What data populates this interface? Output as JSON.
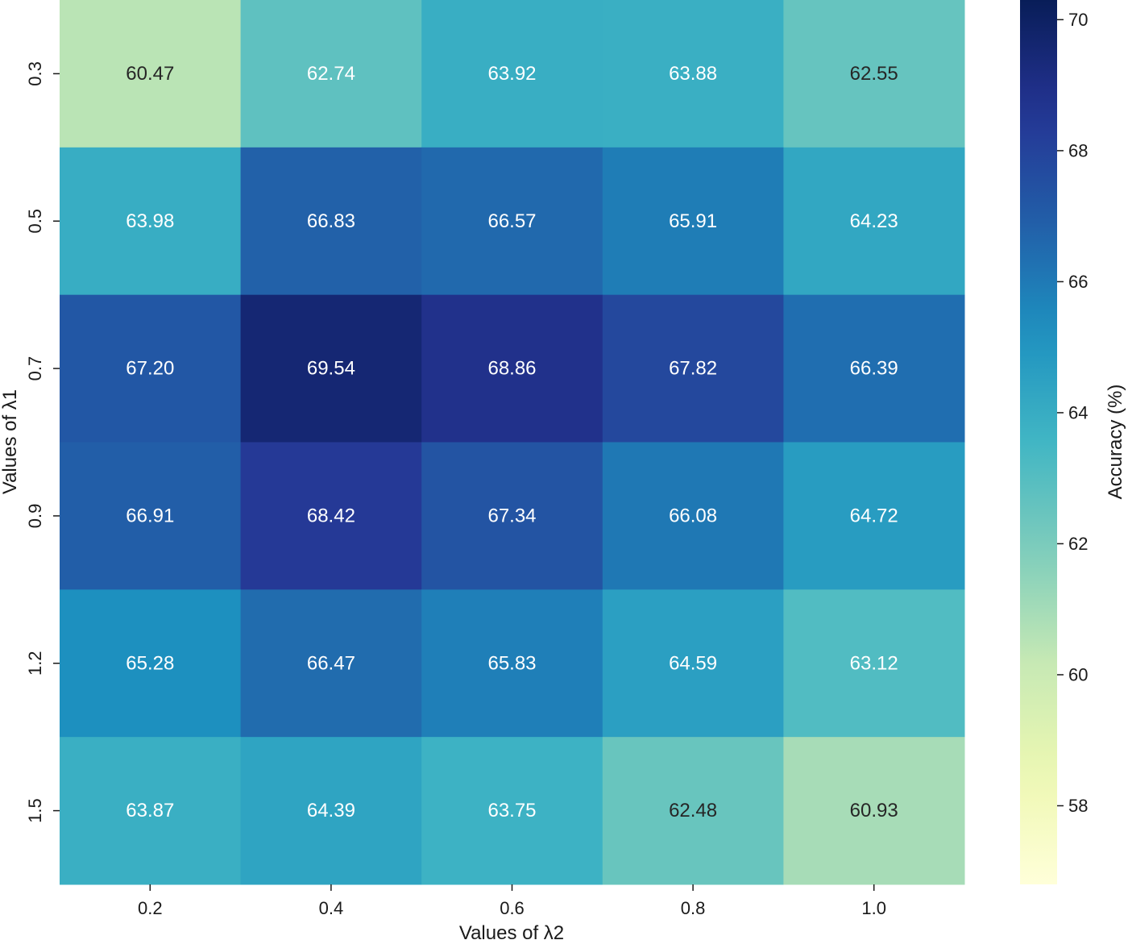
{
  "chart_data": {
    "type": "heatmap",
    "title": "",
    "xlabel": "Values of λ2",
    "ylabel": "Values of λ1",
    "x_categories": [
      "0.2",
      "0.4",
      "0.6",
      "0.8",
      "1.0"
    ],
    "y_categories": [
      "0.3",
      "0.5",
      "0.7",
      "0.9",
      "1.2",
      "1.5"
    ],
    "values": [
      [
        60.47,
        62.74,
        63.92,
        63.88,
        62.55
      ],
      [
        63.98,
        66.83,
        66.57,
        65.91,
        64.23
      ],
      [
        67.2,
        69.54,
        68.86,
        67.82,
        66.39
      ],
      [
        66.91,
        68.42,
        67.34,
        66.08,
        64.72
      ],
      [
        65.28,
        66.47,
        65.83,
        64.59,
        63.12
      ],
      [
        63.87,
        64.39,
        63.75,
        62.48,
        60.93
      ]
    ],
    "cell_labels": [
      [
        "60.47",
        "62.74",
        "63.92",
        "63.88",
        "62.55"
      ],
      [
        "63.98",
        "66.83",
        "66.57",
        "65.91",
        "64.23"
      ],
      [
        "67.20",
        "69.54",
        "68.86",
        "67.82",
        "66.39"
      ],
      [
        "66.91",
        "68.42",
        "67.34",
        "66.08",
        "64.72"
      ],
      [
        "65.28",
        "66.47",
        "65.83",
        "64.59",
        "63.12"
      ],
      [
        "63.87",
        "64.39",
        "63.75",
        "62.48",
        "60.93"
      ]
    ],
    "colorbar": {
      "label": "Accuracy (%)",
      "range": [
        56.8,
        70.3
      ],
      "ticks": [
        "58",
        "60",
        "62",
        "64",
        "66",
        "68",
        "70"
      ],
      "colormap": "YlGnBu"
    },
    "grid": false,
    "legend": "none"
  }
}
